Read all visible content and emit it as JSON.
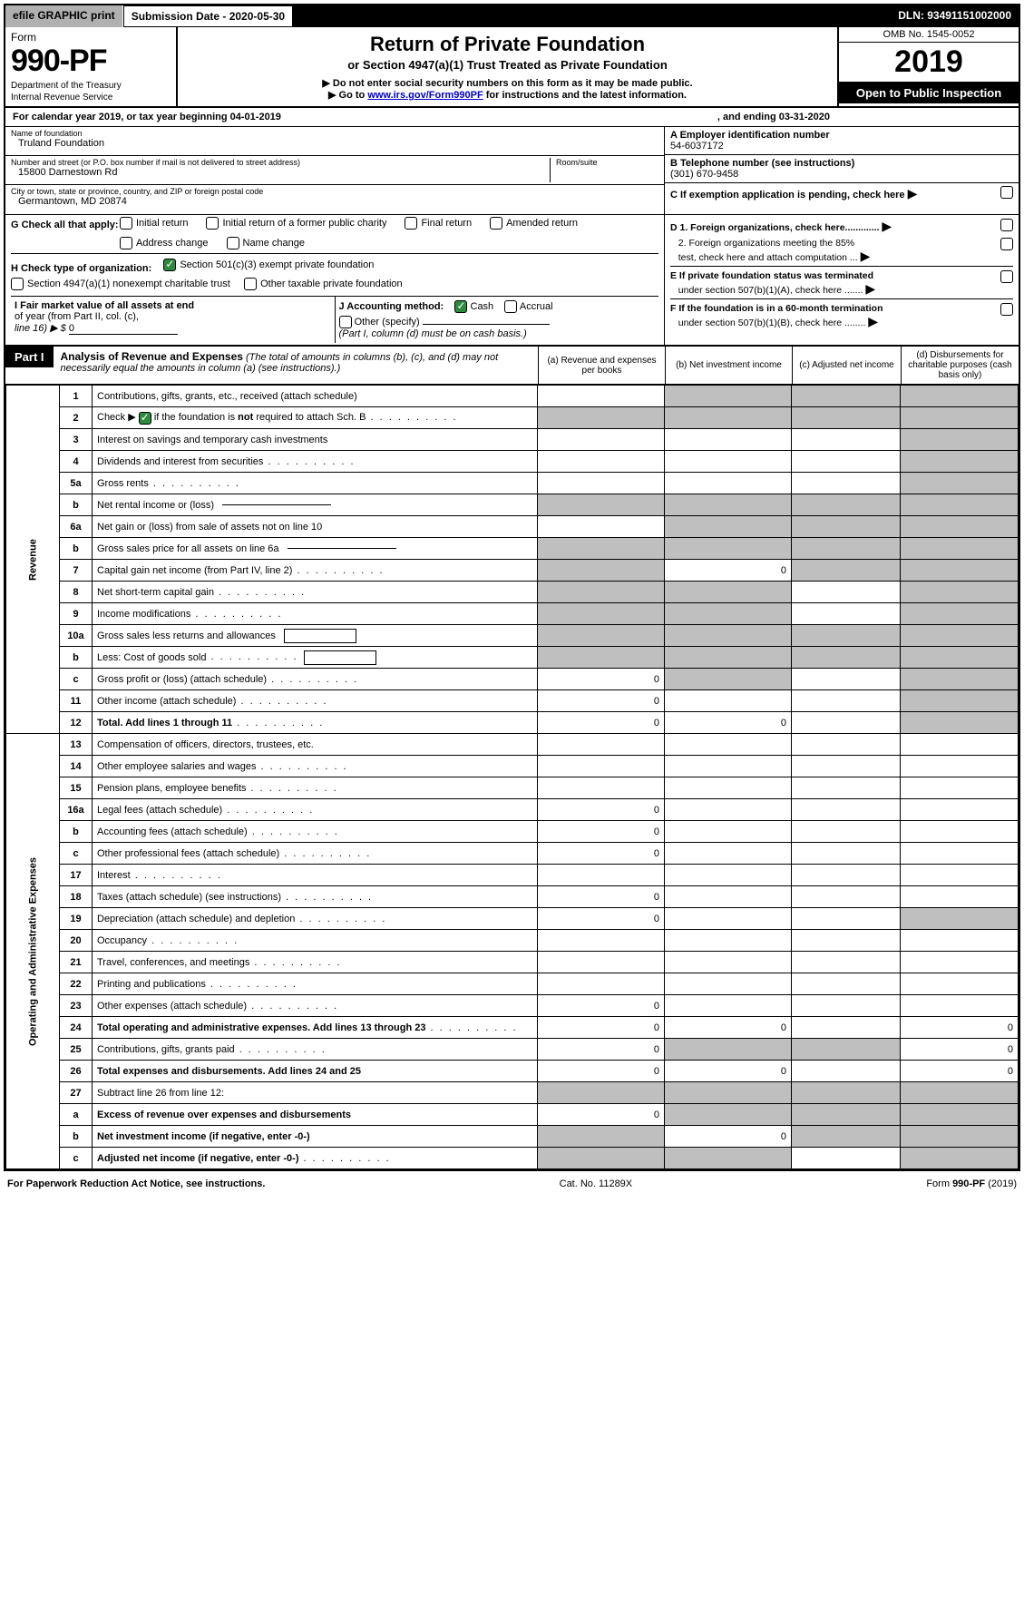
{
  "topbar": {
    "efile": "efile GRAPHIC print",
    "subdate_label": "Submission Date - 2020-05-30",
    "dln": "DLN: 93491151002000"
  },
  "header": {
    "form_label": "Form",
    "form_num": "990-PF",
    "dept1": "Department of the Treasury",
    "dept2": "Internal Revenue Service",
    "title_main": "Return of Private Foundation",
    "title_sub": "or Section 4947(a)(1) Trust Treated as Private Foundation",
    "instr1_pre": "▶ Do not enter social security numbers on this form as it may be made public.",
    "instr2_pre": "▶ Go to ",
    "instr2_link": "www.irs.gov/Form990PF",
    "instr2_post": " for instructions and the latest information.",
    "omb": "OMB No. 1545-0052",
    "year": "2019",
    "open_insp": "Open to Public Inspection"
  },
  "cal": {
    "prefix": "For calendar year 2019, or tax year beginning 04-01-2019",
    "ending": ", and ending 03-31-2020"
  },
  "entity": {
    "name_label": "Name of foundation",
    "name_val": "Truland Foundation",
    "street_label": "Number and street (or P.O. box number if mail is not delivered to street address)",
    "room_label": "Room/suite",
    "street_val": "15800 Darnestown Rd",
    "city_label": "City or town, state or province, country, and ZIP or foreign postal code",
    "city_val": "Germantown, MD  20874",
    "a_label": "A Employer identification number",
    "a_val": "54-6037172",
    "b_label": "B Telephone number (see instructions)",
    "b_val": "(301) 670-9458",
    "c_label": "C If exemption application is pending, check here"
  },
  "g": {
    "label": "G Check all that apply:",
    "opts": [
      "Initial return",
      "Initial return of a former public charity",
      "Final return",
      "Amended return",
      "Address change",
      "Name change"
    ]
  },
  "h": {
    "label": "H Check type of organization:",
    "opt1": "Section 501(c)(3) exempt private foundation",
    "opt2": "Section 4947(a)(1) nonexempt charitable trust",
    "opt3": "Other taxable private foundation"
  },
  "i": {
    "label_l1": "I Fair market value of all assets at end",
    "label_l2": "of year (from Part II, col. (c),",
    "label_l3": "line 16) ▶ $",
    "val": "0"
  },
  "j": {
    "label": "J Accounting method:",
    "cash": "Cash",
    "accrual": "Accrual",
    "other": "Other (specify)",
    "note": "(Part I, column (d) must be on cash basis.)"
  },
  "d": {
    "d1": "D 1. Foreign organizations, check here.............",
    "d2a": "2. Foreign organizations meeting the 85%",
    "d2b": "test, check here and attach computation ...",
    "e1": "E  If private foundation status was terminated",
    "e2": "under section 507(b)(1)(A), check here .......",
    "f1": "F  If the foundation is in a 60-month termination",
    "f2": "under section 507(b)(1)(B), check here ........"
  },
  "part1": {
    "label": "Part I",
    "desc_b": "Analysis of Revenue and Expenses",
    "desc_i": " (The total of amounts in columns (b), (c), and (d) may not necessarily equal the amounts in column (a) (see instructions).)",
    "col_a": "(a)   Revenue and expenses per books",
    "col_b": "(b)  Net investment income",
    "col_c": "(c)  Adjusted net income",
    "col_d": "(d)  Disbursements for charitable purposes (cash basis only)"
  },
  "vtabs": {
    "rev": "Revenue",
    "exp": "Operating and Administrative Expenses"
  },
  "rows": [
    {
      "n": "1",
      "t": "Contributions, gifts, grants, etc., received (attach schedule)",
      "a": "",
      "b": "g",
      "c": "g",
      "d": "g"
    },
    {
      "n": "2",
      "t": "Check ▶ [cb] if the foundation is not required to attach Sch. B",
      "bold_not": true,
      "dots": true,
      "a": "g",
      "b": "g",
      "c": "g",
      "d": "g"
    },
    {
      "n": "3",
      "t": "Interest on savings and temporary cash investments",
      "a": "",
      "b": "",
      "c": "",
      "d": "g"
    },
    {
      "n": "4",
      "t": "Dividends and interest from securities",
      "dots": true,
      "a": "",
      "b": "",
      "c": "",
      "d": "g"
    },
    {
      "n": "5a",
      "t": "Gross rents",
      "dots": true,
      "a": "",
      "b": "",
      "c": "",
      "d": "g"
    },
    {
      "n": "b",
      "t": "Net rental income or (loss) [line]",
      "a": "g",
      "b": "g",
      "c": "g",
      "d": "g"
    },
    {
      "n": "6a",
      "t": "Net gain or (loss) from sale of assets not on line 10",
      "a": "",
      "b": "g",
      "c": "g",
      "d": "g"
    },
    {
      "n": "b",
      "t": "Gross sales price for all assets on line 6a [line]",
      "a": "g",
      "b": "g",
      "c": "g",
      "d": "g"
    },
    {
      "n": "7",
      "t": "Capital gain net income (from Part IV, line 2)",
      "dots": true,
      "a": "g",
      "b": "0",
      "c": "g",
      "d": "g"
    },
    {
      "n": "8",
      "t": "Net short-term capital gain",
      "dots": true,
      "a": "g",
      "b": "g",
      "c": "",
      "d": "g"
    },
    {
      "n": "9",
      "t": "Income modifications",
      "dots": true,
      "a": "g",
      "b": "g",
      "c": "",
      "d": "g"
    },
    {
      "n": "10a",
      "t": "Gross sales less returns and allowances [box]",
      "a": "g",
      "b": "g",
      "c": "g",
      "d": "g"
    },
    {
      "n": "b",
      "t": "Less: Cost of goods sold",
      "dots": true,
      "box": true,
      "a": "g",
      "b": "g",
      "c": "g",
      "d": "g"
    },
    {
      "n": "c",
      "t": "Gross profit or (loss) (attach schedule)",
      "dots": true,
      "a": "0",
      "b": "g",
      "c": "",
      "d": "g"
    },
    {
      "n": "11",
      "t": "Other income (attach schedule)",
      "dots": true,
      "a": "0",
      "b": "",
      "c": "",
      "d": "g"
    },
    {
      "n": "12",
      "t": "Total. Add lines 1 through 11",
      "bold": true,
      "dots": true,
      "a": "0",
      "b": "0",
      "c": "",
      "d": "g"
    },
    {
      "n": "13",
      "t": "Compensation of officers, directors, trustees, etc.",
      "a": "",
      "b": "",
      "c": "",
      "d": ""
    },
    {
      "n": "14",
      "t": "Other employee salaries and wages",
      "dots": true,
      "a": "",
      "b": "",
      "c": "",
      "d": ""
    },
    {
      "n": "15",
      "t": "Pension plans, employee benefits",
      "dots": true,
      "a": "",
      "b": "",
      "c": "",
      "d": ""
    },
    {
      "n": "16a",
      "t": "Legal fees (attach schedule)",
      "dots": true,
      "a": "0",
      "b": "",
      "c": "",
      "d": ""
    },
    {
      "n": "b",
      "t": "Accounting fees (attach schedule)",
      "dots": true,
      "a": "0",
      "b": "",
      "c": "",
      "d": ""
    },
    {
      "n": "c",
      "t": "Other professional fees (attach schedule)",
      "dots": true,
      "a": "0",
      "b": "",
      "c": "",
      "d": ""
    },
    {
      "n": "17",
      "t": "Interest",
      "dots": true,
      "a": "",
      "b": "",
      "c": "",
      "d": ""
    },
    {
      "n": "18",
      "t": "Taxes (attach schedule) (see instructions)",
      "dots": true,
      "a": "0",
      "b": "",
      "c": "",
      "d": ""
    },
    {
      "n": "19",
      "t": "Depreciation (attach schedule) and depletion",
      "dots": true,
      "a": "0",
      "b": "",
      "c": "",
      "d": "g"
    },
    {
      "n": "20",
      "t": "Occupancy",
      "dots": true,
      "a": "",
      "b": "",
      "c": "",
      "d": ""
    },
    {
      "n": "21",
      "t": "Travel, conferences, and meetings",
      "dots": true,
      "a": "",
      "b": "",
      "c": "",
      "d": ""
    },
    {
      "n": "22",
      "t": "Printing and publications",
      "dots": true,
      "a": "",
      "b": "",
      "c": "",
      "d": ""
    },
    {
      "n": "23",
      "t": "Other expenses (attach schedule)",
      "dots": true,
      "a": "0",
      "b": "",
      "c": "",
      "d": ""
    },
    {
      "n": "24",
      "t": "Total operating and administrative expenses. Add lines 13 through 23",
      "bold": true,
      "dots": true,
      "a": "0",
      "b": "0",
      "c": "",
      "d": "0"
    },
    {
      "n": "25",
      "t": "Contributions, gifts, grants paid",
      "dots": true,
      "a": "0",
      "b": "g",
      "c": "g",
      "d": "0"
    },
    {
      "n": "26",
      "t": "Total expenses and disbursements. Add lines 24 and 25",
      "bold": true,
      "a": "0",
      "b": "0",
      "c": "",
      "d": "0"
    },
    {
      "n": "27",
      "t": "Subtract line 26 from line 12:",
      "a": "g",
      "b": "g",
      "c": "g",
      "d": "g"
    },
    {
      "n": "a",
      "t": "Excess of revenue over expenses and disbursements",
      "bold": true,
      "a": "0",
      "b": "g",
      "c": "g",
      "d": "g"
    },
    {
      "n": "b",
      "t": "Net investment income (if negative, enter -0-)",
      "bold": true,
      "a": "g",
      "b": "0",
      "c": "g",
      "d": "g"
    },
    {
      "n": "c",
      "t": "Adjusted net income (if negative, enter -0-)",
      "bold": true,
      "dots": true,
      "a": "g",
      "b": "g",
      "c": "",
      "d": "g"
    }
  ],
  "footer": {
    "left": "For Paperwork Reduction Act Notice, see instructions.",
    "mid": "Cat. No. 11289X",
    "right": "Form 990-PF (2019)"
  },
  "style": {
    "grey": "#bfbfbf",
    "green_check": "#2e8b3e",
    "link_color": "#0000cc"
  }
}
